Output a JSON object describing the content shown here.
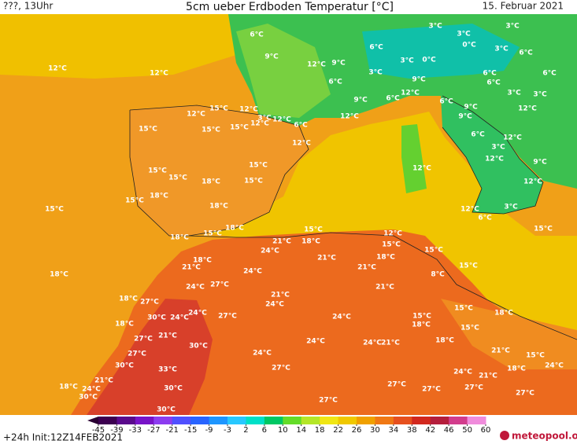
{
  "header": {
    "left": "???, 13Uhr",
    "title": "5cm ueber Erdboden Temperatur [°C]",
    "date": "15. Februar 2021"
  },
  "footer": {
    "run": "+24h Init:12Z14FEB2021",
    "logo": "meteopool.org"
  },
  "colorbar": {
    "ticks": [
      -45,
      -39,
      -33,
      -27,
      -21,
      -15,
      -9,
      -3,
      2,
      6,
      10,
      14,
      18,
      22,
      26,
      30,
      34,
      38,
      42,
      46,
      50,
      60
    ],
    "colors": [
      "#3c0050",
      "#5a0a8c",
      "#7814c8",
      "#8c3cf0",
      "#5050ff",
      "#2864ff",
      "#1e96ff",
      "#28c8ff",
      "#00e0c8",
      "#00c864",
      "#64dc28",
      "#b4e628",
      "#f0e614",
      "#f0c800",
      "#f0a000",
      "#f07814",
      "#e6501e",
      "#d2281e",
      "#b41e3c",
      "#d23c8c",
      "#f08cdc"
    ],
    "arrow_color": "#2a0032"
  },
  "map": {
    "labels": [
      "6°C",
      "3°C",
      "3°C",
      "3°C",
      "9°C",
      "12°C",
      "9°C",
      "0°C",
      "3°C",
      "0°C",
      "3°C",
      "6°C",
      "12°C",
      "12°C",
      "6°C",
      "3°C",
      "6°C",
      "9°C",
      "6°C",
      "6°C",
      "6°C",
      "3°C",
      "3°C",
      "9°C",
      "6°C",
      "12°C",
      "6°C",
      "9°C",
      "12°C",
      "15°C",
      "12°C",
      "12°C",
      "3°C",
      "12°C",
      "12°C",
      "9°C",
      "15°C",
      "15°C",
      "15°C",
      "12°C",
      "6°C",
      "12°C",
      "6°C",
      "12°C",
      "3°C",
      "12°C",
      "15°C",
      "12°C",
      "9°C",
      "15°C",
      "15°C",
      "18°C",
      "15°C",
      "12°C",
      "18°C",
      "15°C",
      "18°C",
      "15°C",
      "12°C",
      "6°C",
      "3°C",
      "15°C",
      "18°C",
      "15°C",
      "15°C",
      "18°C",
      "21°C",
      "18°C",
      "12°C",
      "15°C",
      "15°C",
      "24°C",
      "21°C",
      "18°C",
      "18°C",
      "21°C",
      "24°C",
      "21°C",
      "15°C",
      "18°C",
      "8°C",
      "24°C",
      "27°C",
      "21°C",
      "21°C",
      "18°C",
      "27°C",
      "24°C",
      "15°C",
      "18°C",
      "24°C",
      "27°C",
      "30°C",
      "24°C",
      "24°C",
      "15°C",
      "18°C",
      "18°C",
      "15°C",
      "21°C",
      "27°C",
      "24°C",
      "24°C",
      "21°C",
      "18°C",
      "30°C",
      "21°C",
      "27°C",
      "24°C",
      "15°C",
      "30°C",
      "33°C",
      "27°C",
      "18°C",
      "24°C",
      "24°C",
      "21°C",
      "21°C",
      "27°C",
      "27°C",
      "27°C",
      "18°C",
      "30°C",
      "24°C",
      "30°C",
      "27°C",
      "27°C",
      "30°C"
    ]
  }
}
